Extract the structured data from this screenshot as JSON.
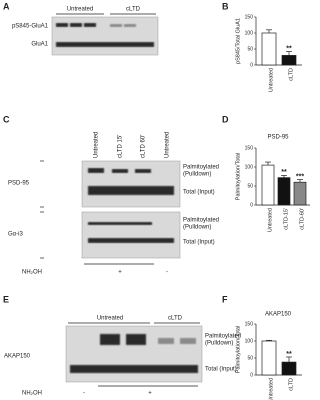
{
  "panels": {
    "A": {
      "label": "A",
      "columns": [
        "Untreated",
        "cLTD"
      ],
      "rows": [
        "pS845-GluA1",
        "GluA1"
      ]
    },
    "C": {
      "label": "C",
      "lanes": [
        "Untreated",
        "cLTD 15'",
        "cLTD 60'",
        "Untreated"
      ],
      "rows": [
        "PSD-95",
        "Gα-i3"
      ],
      "pulldown_label": [
        "Palmitoylated",
        "(Pulldown)"
      ],
      "input_label": "Total (Input)",
      "treatment": "NH₂OH",
      "treatment_marks": [
        "+",
        "-"
      ]
    },
    "E": {
      "label": "E",
      "columns": [
        "Untreated",
        "cLTD"
      ],
      "rows": [
        "AKAP150"
      ],
      "pulldown_label": [
        "Palmitoylated",
        "(Pulldown)"
      ],
      "input_label": "Total (Input)",
      "treatment": "NH₂OH",
      "treatment_marks": [
        "-",
        "+"
      ]
    }
  },
  "chart_data": [
    {
      "type": "bar",
      "panel": "B",
      "ylabel": "pS845/Total GluA1",
      "categories": [
        "Untreated",
        "cLTD"
      ],
      "values": [
        100,
        30
      ],
      "errors": [
        10,
        12
      ],
      "colors": [
        "#ffffff",
        "#111111"
      ],
      "significance": [
        null,
        "**"
      ],
      "ylim": [
        0,
        150
      ],
      "yticks": [
        0,
        50,
        100,
        150
      ]
    },
    {
      "type": "bar",
      "panel": "D",
      "title": "PSD-95",
      "ylabel": "Palmitoylation/Total",
      "categories": [
        "Untreated",
        "cLTD-15'",
        "cLTD-60'"
      ],
      "values": [
        105,
        72,
        60
      ],
      "errors": [
        8,
        6,
        7
      ],
      "colors": [
        "#ffffff",
        "#111111",
        "#888888"
      ],
      "significance": [
        null,
        "**",
        "***"
      ],
      "ylim": [
        0,
        150
      ],
      "yticks": [
        0,
        50,
        100,
        150
      ]
    },
    {
      "type": "bar",
      "panel": "F",
      "title": "AKAP150",
      "ylabel": "Palmitoylation/Total",
      "categories": [
        "Untreated",
        "cLTD"
      ],
      "values": [
        100,
        38
      ],
      "errors": [
        2,
        15
      ],
      "colors": [
        "#ffffff",
        "#111111"
      ],
      "significance": [
        null,
        "**"
      ],
      "ylim": [
        0,
        150
      ],
      "yticks": [
        0,
        50,
        100,
        150
      ]
    }
  ]
}
